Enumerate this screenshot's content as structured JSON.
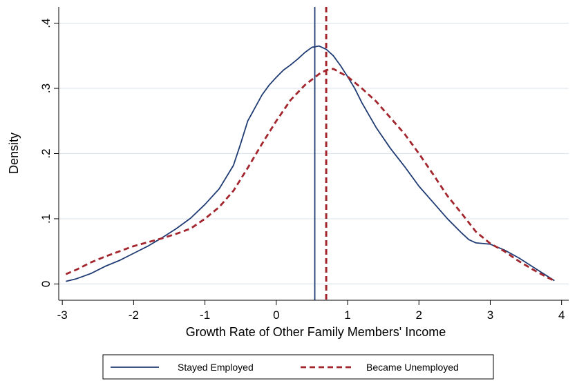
{
  "chart_data": {
    "type": "line",
    "title": "",
    "xlabel": "Growth Rate of Other Family Members' Income",
    "ylabel": "Density",
    "xlim": [
      -3.05,
      4.1
    ],
    "ylim": [
      -0.025,
      0.425
    ],
    "xticks": [
      -3,
      -2,
      -1,
      0,
      1,
      2,
      3,
      4
    ],
    "xtick_labels": [
      "-3",
      "-2",
      "-1",
      "0",
      "1",
      "2",
      "3",
      "4"
    ],
    "yticks": [
      0,
      0.1,
      0.2,
      0.3,
      0.4
    ],
    "ytick_labels": [
      "0",
      ".1",
      ".2",
      ".3",
      ".4"
    ],
    "grid": "horizontal",
    "legend_position": "bottom",
    "series": [
      {
        "name": "Stayed Employed",
        "color": "#1f3b73",
        "style": "solid",
        "mean_line": 0.54,
        "x": [
          -2.95,
          -2.8,
          -2.6,
          -2.4,
          -2.2,
          -2.0,
          -1.8,
          -1.6,
          -1.4,
          -1.2,
          -1.0,
          -0.8,
          -0.6,
          -0.5,
          -0.4,
          -0.3,
          -0.2,
          -0.1,
          0.0,
          0.1,
          0.2,
          0.3,
          0.4,
          0.5,
          0.6,
          0.7,
          0.8,
          0.9,
          1.0,
          1.1,
          1.2,
          1.4,
          1.6,
          1.8,
          2.0,
          2.2,
          2.4,
          2.6,
          2.7,
          2.8,
          3.0,
          3.2,
          3.4,
          3.6,
          3.8,
          3.9
        ],
        "y": [
          0.004,
          0.008,
          0.016,
          0.027,
          0.036,
          0.047,
          0.058,
          0.071,
          0.085,
          0.101,
          0.122,
          0.146,
          0.182,
          0.215,
          0.25,
          0.27,
          0.29,
          0.305,
          0.317,
          0.328,
          0.336,
          0.345,
          0.355,
          0.363,
          0.365,
          0.36,
          0.35,
          0.335,
          0.318,
          0.3,
          0.278,
          0.24,
          0.208,
          0.18,
          0.15,
          0.125,
          0.1,
          0.078,
          0.068,
          0.063,
          0.061,
          0.052,
          0.04,
          0.026,
          0.012,
          0.005
        ]
      },
      {
        "name": "Became Unemployed",
        "color": "#a3262e",
        "style": "dashed",
        "mean_line": 0.7,
        "x": [
          -2.95,
          -2.8,
          -2.6,
          -2.4,
          -2.2,
          -2.0,
          -1.8,
          -1.6,
          -1.4,
          -1.2,
          -1.0,
          -0.8,
          -0.6,
          -0.4,
          -0.2,
          0.0,
          0.2,
          0.4,
          0.6,
          0.7,
          0.8,
          1.0,
          1.2,
          1.4,
          1.6,
          1.8,
          2.0,
          2.2,
          2.4,
          2.6,
          2.8,
          3.0,
          3.2,
          3.4,
          3.6,
          3.8,
          3.9
        ],
        "y": [
          0.015,
          0.022,
          0.033,
          0.042,
          0.05,
          0.058,
          0.064,
          0.07,
          0.077,
          0.085,
          0.1,
          0.118,
          0.143,
          0.178,
          0.215,
          0.25,
          0.282,
          0.305,
          0.322,
          0.328,
          0.33,
          0.318,
          0.3,
          0.28,
          0.255,
          0.23,
          0.2,
          0.168,
          0.135,
          0.108,
          0.08,
          0.062,
          0.05,
          0.035,
          0.022,
          0.01,
          0.005
        ]
      }
    ]
  }
}
